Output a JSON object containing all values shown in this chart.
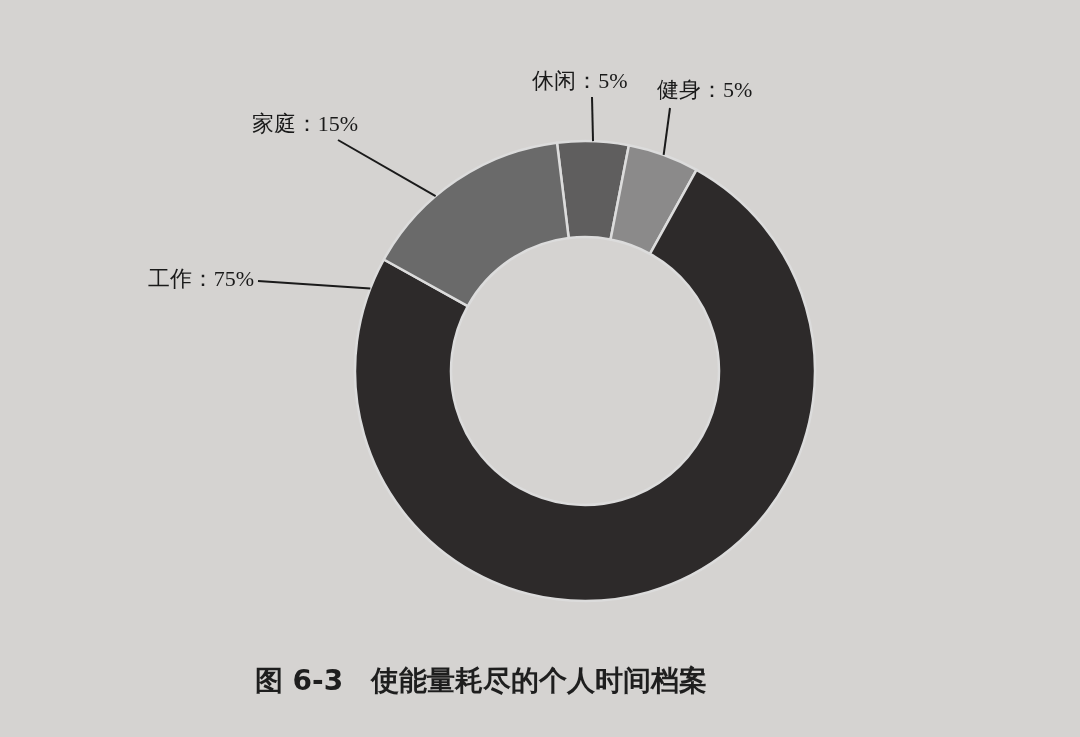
{
  "chart_data": {
    "type": "donut",
    "title": "图 6-3　使能量耗尽的个人时间档案",
    "categories": [
      "休闲",
      "健身",
      "工作",
      "家庭"
    ],
    "values": [
      5,
      5,
      75,
      15
    ],
    "value_labels": [
      "5%",
      "5%",
      "75%",
      "15%"
    ],
    "colors": [
      "#5f5e5e",
      "#8b8a8a",
      "#2d2a2a",
      "#6a6a6a"
    ]
  }
}
